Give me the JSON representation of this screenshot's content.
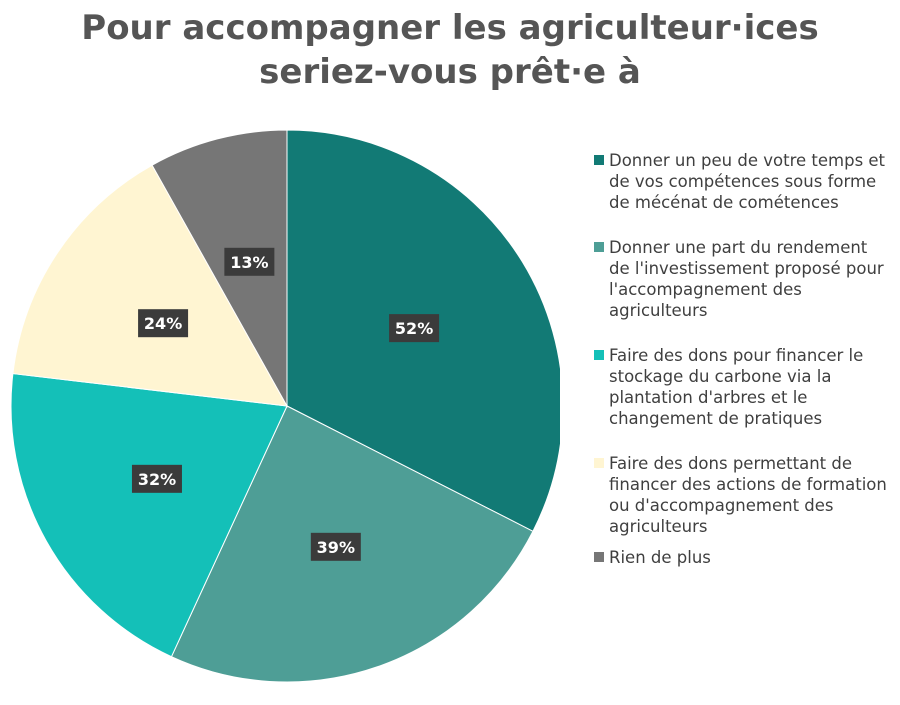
{
  "chart_data": {
    "type": "pie",
    "title_lines": [
      "Pour accompagner les agriculteur·ices",
      "seriez-vous prêt·e à"
    ],
    "slices": [
      {
        "label": "Donner un peu de votre temps et de vos compétences sous forme de mécénat de cométences",
        "value": 52,
        "display": "52%",
        "color": "#127a75"
      },
      {
        "label": "Donner une part du rendement de l'investissement proposé pour l'accompagnement des agriculteurs",
        "value": 39,
        "display": "39%",
        "color": "#4e9e96"
      },
      {
        "label": "Faire des dons pour financer le stockage du carbone via la plantation d'arbres et le changement de pratiques",
        "value": 32,
        "display": "32%",
        "color": "#14c0b8"
      },
      {
        "label": "Faire des dons permettant de financer des actions de formation ou d'accompagnement des agriculteurs",
        "value": 24,
        "display": "24%",
        "color": "#fff5d2"
      },
      {
        "label": "Rien de plus",
        "value": 13,
        "display": "13%",
        "color": "#767676"
      }
    ],
    "legend_position": "right"
  }
}
